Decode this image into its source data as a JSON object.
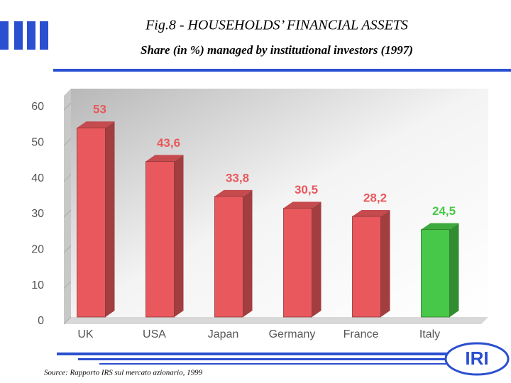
{
  "chart_data": {
    "type": "bar3d",
    "title": "Fig.8 - HOUSEHOLDS’ FINANCIAL ASSETS",
    "subtitle": "Share (in %) managed by institutional investors (1997)",
    "categories": [
      "UK",
      "USA",
      "Japan",
      "Germany",
      "France",
      "Italy"
    ],
    "values": [
      53,
      43.6,
      33.8,
      30.5,
      28.2,
      24.5
    ],
    "value_labels": [
      "53",
      "43,6",
      "33,8",
      "30,5",
      "28,2",
      "24,5"
    ],
    "colors": [
      "#e8585c",
      "#e8585c",
      "#e8585c",
      "#e8585c",
      "#e8585c",
      "#48c848"
    ],
    "ylim": [
      0,
      60
    ],
    "yticks": [
      0,
      10,
      20,
      30,
      40,
      50,
      60
    ],
    "grid": false,
    "source": "Source: Rapporto IRS sul mercato azionario, 1999",
    "logo": "IRI"
  }
}
